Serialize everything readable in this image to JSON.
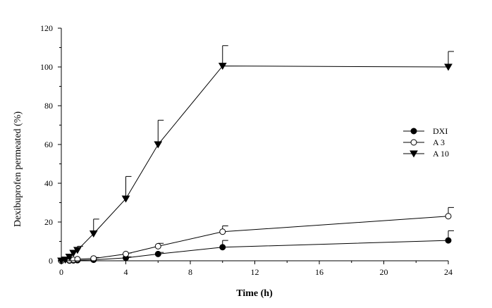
{
  "chart_data": {
    "type": "line",
    "xlabel": "Time (h)",
    "ylabel": "Dexibuprofen permeated (%)",
    "xlim": [
      0,
      24
    ],
    "ylim": [
      0,
      120
    ],
    "xticks": [
      "0",
      "4",
      "8",
      "12",
      "16",
      "20",
      "24"
    ],
    "yticks": [
      "0",
      "20",
      "40",
      "60",
      "80",
      "100",
      "120"
    ],
    "legend_position": "center-right",
    "series": [
      {
        "name": "DXI",
        "marker": "filled-circle",
        "x": [
          0,
          0.5,
          0.75,
          1,
          2,
          4,
          6,
          10,
          24
        ],
        "y": [
          0,
          0.1,
          0.2,
          0.3,
          0.5,
          1.5,
          3.5,
          7,
          10.5
        ],
        "error": [
          0,
          0,
          0,
          0,
          0,
          0.5,
          0.8,
          3.5,
          5
        ]
      },
      {
        "name": "A 3",
        "marker": "open-circle",
        "x": [
          0,
          0.5,
          0.75,
          1,
          2,
          4,
          6,
          10,
          24
        ],
        "y": [
          0,
          0.3,
          0.5,
          0.8,
          1.2,
          3.5,
          7.5,
          15,
          23
        ],
        "error": [
          0,
          0,
          0,
          0,
          0.5,
          0.5,
          1.5,
          3,
          4.5
        ]
      },
      {
        "name": "A 10",
        "marker": "filled-triangle-down",
        "x": [
          0,
          0.25,
          0.5,
          0.75,
          1,
          2,
          4,
          6,
          10,
          24
        ],
        "y": [
          0,
          0.5,
          2,
          4,
          5.5,
          14,
          32,
          60,
          100.5,
          100
        ],
        "error": [
          0,
          0,
          0,
          0,
          2,
          7.5,
          11.5,
          12.5,
          10.5,
          8
        ]
      }
    ]
  }
}
